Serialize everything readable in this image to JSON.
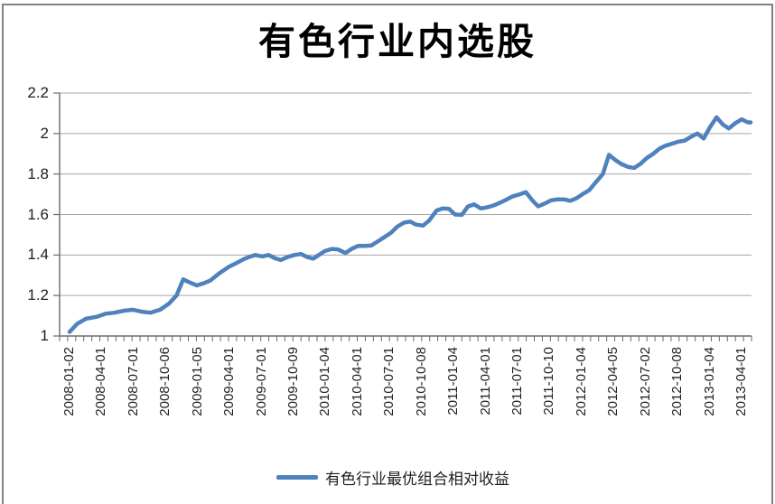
{
  "page": {
    "background": "#ffffff",
    "frame_border_color": "#808080"
  },
  "chart_data": {
    "type": "line",
    "title": "有色行业内选股",
    "legend_position": "bottom",
    "legend": [
      {
        "label": "有色行业最优组合相对收益",
        "color": "#4f81bd"
      }
    ],
    "grid": {
      "horizontal": true,
      "vertical": false,
      "color": "#a6a6a6"
    },
    "axis_color": "#6b6b6b",
    "y_axis": {
      "min": 1,
      "max": 2.2,
      "tick_interval": 0.2,
      "tick_labels": [
        "2.2",
        "2",
        "1.8",
        "1.6",
        "1.4",
        "1.2",
        "1"
      ]
    },
    "x_axis": {
      "tick_labels": [
        "2008-01-02",
        "2008-04-01",
        "2008-07-01",
        "2008-10-06",
        "2009-01-05",
        "2009-04-01",
        "2009-07-01",
        "2009-10-09",
        "2010-01-04",
        "2010-04-01",
        "2010-07-01",
        "2010-10-08",
        "2011-01-04",
        "2011-04-01",
        "2011-07-01",
        "2011-10-10",
        "2012-01-04",
        "2012-04-05",
        "2012-07-02",
        "2012-10-08",
        "2013-01-04",
        "2013-04-01"
      ],
      "minor_ticks_per_label": 4
    },
    "series": [
      {
        "name": "有色行业最优组合相对收益",
        "color": "#4f81bd",
        "points": [
          [
            0.0,
            1.02
          ],
          [
            0.011,
            1.06
          ],
          [
            0.024,
            1.085
          ],
          [
            0.04,
            1.095
          ],
          [
            0.053,
            1.11
          ],
          [
            0.066,
            1.115
          ],
          [
            0.08,
            1.125
          ],
          [
            0.093,
            1.13
          ],
          [
            0.106,
            1.12
          ],
          [
            0.119,
            1.115
          ],
          [
            0.133,
            1.13
          ],
          [
            0.146,
            1.16
          ],
          [
            0.157,
            1.2
          ],
          [
            0.167,
            1.28
          ],
          [
            0.176,
            1.265
          ],
          [
            0.187,
            1.25
          ],
          [
            0.198,
            1.262
          ],
          [
            0.207,
            1.275
          ],
          [
            0.22,
            1.31
          ],
          [
            0.233,
            1.34
          ],
          [
            0.245,
            1.36
          ],
          [
            0.256,
            1.38
          ],
          [
            0.265,
            1.392
          ],
          [
            0.273,
            1.4
          ],
          [
            0.283,
            1.393
          ],
          [
            0.292,
            1.4
          ],
          [
            0.301,
            1.385
          ],
          [
            0.31,
            1.375
          ],
          [
            0.32,
            1.39
          ],
          [
            0.33,
            1.4
          ],
          [
            0.34,
            1.405
          ],
          [
            0.349,
            1.39
          ],
          [
            0.358,
            1.382
          ],
          [
            0.366,
            1.4
          ],
          [
            0.375,
            1.42
          ],
          [
            0.385,
            1.43
          ],
          [
            0.394,
            1.428
          ],
          [
            0.405,
            1.41
          ],
          [
            0.414,
            1.43
          ],
          [
            0.424,
            1.445
          ],
          [
            0.434,
            1.445
          ],
          [
            0.443,
            1.447
          ],
          [
            0.454,
            1.47
          ],
          [
            0.463,
            1.49
          ],
          [
            0.472,
            1.51
          ],
          [
            0.481,
            1.54
          ],
          [
            0.491,
            1.56
          ],
          [
            0.5,
            1.565
          ],
          [
            0.509,
            1.55
          ],
          [
            0.519,
            1.545
          ],
          [
            0.528,
            1.57
          ],
          [
            0.539,
            1.62
          ],
          [
            0.548,
            1.63
          ],
          [
            0.557,
            1.628
          ],
          [
            0.566,
            1.6
          ],
          [
            0.576,
            1.598
          ],
          [
            0.585,
            1.64
          ],
          [
            0.594,
            1.65
          ],
          [
            0.604,
            1.63
          ],
          [
            0.614,
            1.636
          ],
          [
            0.623,
            1.645
          ],
          [
            0.633,
            1.66
          ],
          [
            0.642,
            1.675
          ],
          [
            0.651,
            1.69
          ],
          [
            0.661,
            1.7
          ],
          [
            0.67,
            1.71
          ],
          [
            0.679,
            1.672
          ],
          [
            0.688,
            1.64
          ],
          [
            0.698,
            1.655
          ],
          [
            0.707,
            1.67
          ],
          [
            0.716,
            1.675
          ],
          [
            0.726,
            1.675
          ],
          [
            0.735,
            1.668
          ],
          [
            0.744,
            1.68
          ],
          [
            0.753,
            1.7
          ],
          [
            0.763,
            1.72
          ],
          [
            0.773,
            1.76
          ],
          [
            0.783,
            1.8
          ],
          [
            0.792,
            1.895
          ],
          [
            0.801,
            1.87
          ],
          [
            0.81,
            1.85
          ],
          [
            0.82,
            1.835
          ],
          [
            0.829,
            1.83
          ],
          [
            0.838,
            1.85
          ],
          [
            0.848,
            1.88
          ],
          [
            0.857,
            1.9
          ],
          [
            0.866,
            1.925
          ],
          [
            0.875,
            1.94
          ],
          [
            0.885,
            1.95
          ],
          [
            0.894,
            1.96
          ],
          [
            0.903,
            1.965
          ],
          [
            0.913,
            1.985
          ],
          [
            0.922,
            2.0
          ],
          [
            0.931,
            1.975
          ],
          [
            0.94,
            2.03
          ],
          [
            0.95,
            2.08
          ],
          [
            0.959,
            2.045
          ],
          [
            0.968,
            2.025
          ],
          [
            0.977,
            2.05
          ],
          [
            0.987,
            2.07
          ],
          [
            0.996,
            2.055
          ],
          [
            1.0,
            2.055
          ]
        ]
      }
    ]
  }
}
